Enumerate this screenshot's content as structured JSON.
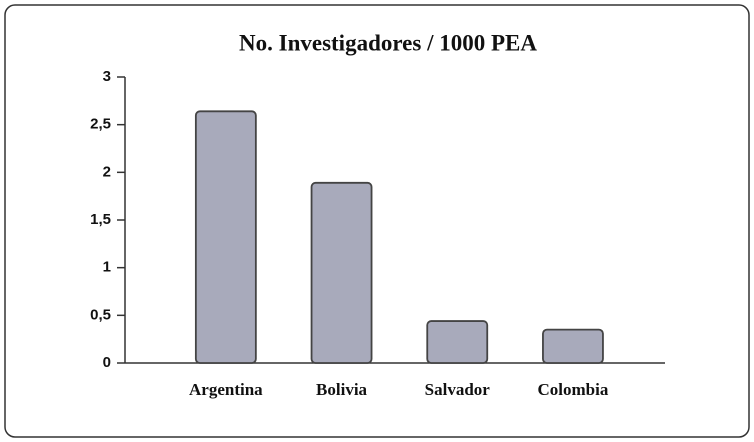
{
  "chart_data": {
    "type": "bar",
    "title": "No. Investigadores / 1000 PEA",
    "categories": [
      "Argentina",
      "Bolivia",
      "Salvador",
      "Colombia"
    ],
    "values": [
      2.64,
      1.89,
      0.44,
      0.35
    ],
    "color": "#a8aabb",
    "ylim": [
      0,
      3
    ],
    "yticks": [
      0,
      {
        "value": 0.5,
        "label": "0,5"
      },
      1,
      {
        "value": 1.5,
        "label": "1,5"
      },
      2,
      {
        "value": 2.5,
        "label": "2,5"
      },
      3
    ]
  }
}
